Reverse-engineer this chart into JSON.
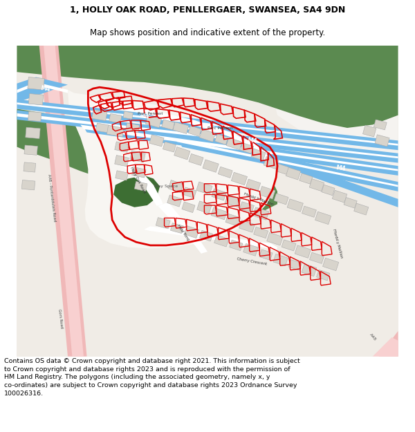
{
  "title_line1": "1, HOLLY OAK ROAD, PENLLERGAER, SWANSEA, SA4 9DN",
  "title_line2": "Map shows position and indicative extent of the property.",
  "footer_lines": [
    "Contains OS data © Crown copyright and database right 2021. This information is subject to Crown copyright and database rights 2023 and is reproduced with the permission of",
    "HM Land Registry. The polygons (including the associated geometry, namely x, y co-ordinates) are subject to Crown copyright and database rights 2023 Ordnance Survey",
    "100026316."
  ],
  "title_fontsize": 9.0,
  "footer_fontsize": 6.8,
  "bg_color": "#ffffff",
  "map_bg": "#f0ece6",
  "white_bg": "#f8f8f8",
  "green_color": "#5b8a50",
  "green_dark": "#3d6e33",
  "blue_road": "#72b8e8",
  "blue_road_light": "#a8d4f0",
  "red_color": "#dd0000",
  "pink_road": "#f0b8b8",
  "pink_road2": "#f5c8c8",
  "building_fill": "#d8d4cc",
  "building_edge": "#aaaaaa",
  "road_white": "#ffffff",
  "figwidth": 6.0,
  "figheight": 6.25
}
